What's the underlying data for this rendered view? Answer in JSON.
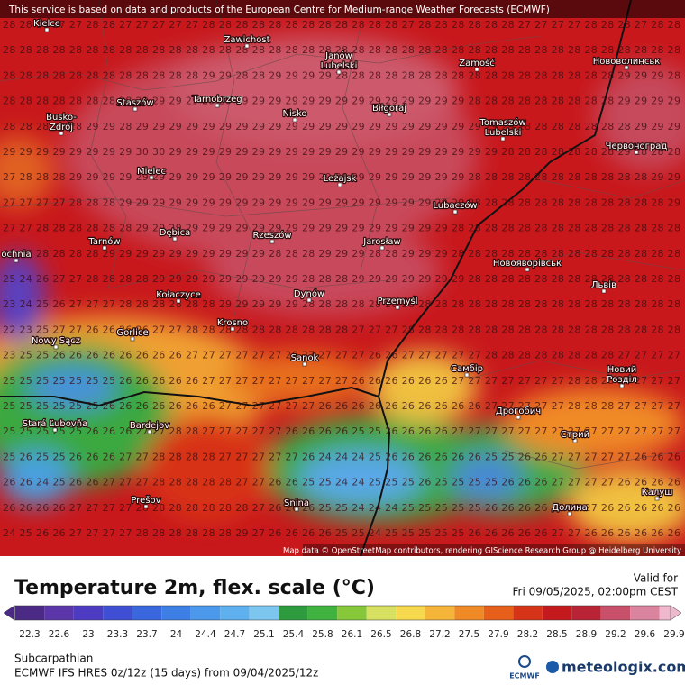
{
  "header": {
    "notice": "This service is based on data and products of the European Centre for Medium-range Weather Forecasts (ECMWF)"
  },
  "grid_rows": [
    "28 28 28 27 27 28 28 27 27 27 27 27 28 28 28 28 28 28 28 28 28 28 28 28 27 28 28 28 28 28 28 27 27 27 27 28 28 28 27 28 28",
    "28 28 28 28 28 28 28 28 28 28 28 28 28 28 28 28 28 28 28 28 28 28 28 28 28 28 28 28 28 28 28 28 28 28 28 28 28 28 28 28 28",
    "28 28 28 28 28 28 28 28 28 28 28 28 29 29 28 28 29 29 29 29 28 28 28 28 28 28 28 28 28 28 28 28 28 28 28 28 28 29 29 29 28",
    "28 28 28 28 28 28 28 28 29 29 29 29 29 29 29 29 29 29 29 29 29 29 29 29 29 29 29 29 28 28 28 28 28 28 28 28 28 29 29 29 29",
    "28 28 28 28 28 29 29 28 29 29 29 29 29 29 29 29 29 29 29 29 29 29 29 29 29 29 29 29 29 29 29 28 28 28 28 28 28 28 29 29 29",
    "29 29 29 29 29 29 29 29 30 30 29 29 29 29 29 29 29 29 29 29 29 29 29 29 29 29 29 29 29 29 28 28 28 28 28 28 28 29 28 28 28",
    "27 28 28 28 29 29 29 29 29 29 29 29 29 29 29 29 29 29 29 29 29 29 29 29 29 29 29 29 28 28 28 28 28 28 28 28 28 28 28 29 29",
    "27 27 27 27 28 28 28 29 29 29 29 29 29 29 29 29 29 29 29 29 29 29 29 29 29 29 29 29 28 28 28 28 28 28 28 28 28 28 28 28 29",
    "27 27 28 28 28 28 28 28 29 29 29 29 29 29 29 29 29 29 29 29 29 29 29 29 29 29 29 28 28 28 28 28 28 28 28 28 28 28 28 28 28",
    "25 27 28 28 28 28 29 29 29 29 29 29 29 29 29 29 28 28 28 29 29 29 28 28 29 29 29 28 28 28 28 28 28 28 28 28 28 28 28 28 28",
    "25 24 26 27 27 28 28 28 28 29 29 29 29 29 29 29 29 29 28 28 28 29 29 29 29 29 29 29 28 28 28 28 28 28 28 28 28 28 28 28 28",
    "23 24 25 26 27 27 27 28 28 28 28 28 28 29 29 29 29 29 28 28 28 28 28 28 28 28 28 28 28 28 28 28 28 28 28 28 28 28 28 28 28",
    "22 23 25 27 27 26 26 26 26 27 27 28 28 28 28 28 28 28 28 28 28 27 27 27 28 28 28 28 28 28 28 28 28 28 28 28 28 28 28 28 28",
    "23 25 25 26 26 26 26 26 26 26 26 27 27 27 27 27 27 28 27 27 27 27 26 26 27 27 27 27 27 28 28 28 28 28 28 28 28 27 27 27 27",
    "25 25 25 25 25 25 25 26 26 26 26 26 27 27 27 27 27 27 27 27 27 26 26 26 26 26 26 27 27 27 27 27 27 27 28 28 28 27 27 27 27",
    "25 25 25 25 25 25 26 26 26 26 26 26 26 27 27 27 27 27 27 26 26 26 26 26 26 26 26 26 26 27 27 27 27 27 28 28 28 27 27 27 27",
    "25 25 25 25 25 26 26 26 27 27 28 28 27 27 27 27 27 26 26 26 26 25 25 26 26 26 26 27 27 27 27 27 27 27 27 27 27 27 27 27 27",
    "25 26 25 25 26 26 26 27 27 28 28 28 28 27 27 27 27 27 26 24 24 24 25 26 26 26 26 26 26 25 25 26 26 27 27 27 27 27 26 26 26",
    "26 26 24 25 26 26 27 27 27 28 28 28 28 28 27 27 26 26 25 25 24 24 25 25 25 26 25 25 25 25 26 26 26 27 27 27 27 26 26 26 26",
    "26 26 26 26 27 27 27 27 28 28 28 28 28 28 28 27 26 26 26 25 25 24 24 24 25 25 25 25 25 26 26 26 26 27 27 27 26 26 26 26 26",
    "24 25 26 26 27 27 27 27 28 28 28 28 28 28 29 27 26 26 26 26 25 25 24 25 25 25 25 25 26 26 26 26 26 27 27 26 26 26 26 26 26"
  ],
  "cities": [
    [
      "Kielce"
    ],
    [
      "Zawichost"
    ],
    [
      "Janów",
      "Lubelski"
    ],
    [
      "Zamość"
    ],
    [
      "Нововолинськ"
    ],
    [
      "Staszów"
    ],
    [
      "Tarnobrzeg"
    ],
    [
      "Nisko"
    ],
    [
      "Biłgoraj"
    ],
    [
      "Busko-",
      "Zdrój"
    ],
    [
      "Tomaszów",
      "Lubelski"
    ],
    [
      "Червоноград"
    ],
    [
      "Mielec"
    ],
    [
      "Leżajsk"
    ],
    [
      "Lubaczów"
    ],
    [
      "Tarnów"
    ],
    [
      "Dębica"
    ],
    [
      "Rzeszów"
    ],
    [
      "Jarosław"
    ],
    [
      "Новояворівськ"
    ],
    [
      "Львів"
    ],
    [
      "ochnia"
    ],
    [
      "Kołaczyce"
    ],
    [
      "Dynów"
    ],
    [
      "Przemyśl"
    ],
    [
      "Krosno"
    ],
    [
      "Gorlice"
    ],
    [
      "Nowy Sącz"
    ],
    [
      "Sanok"
    ],
    [
      "Самбір"
    ],
    [
      "Новий",
      "Розділ"
    ],
    [
      "Stará Ľubovňa"
    ],
    [
      "Bardejov"
    ],
    [
      "Дрогобич"
    ],
    [
      "Стрий"
    ],
    [
      "Prešov"
    ],
    [
      "Snina"
    ],
    [
      "Калуш"
    ],
    [
      "Долина"
    ]
  ],
  "attribution": "Map data © OpenStreetMap contributors, rendering GIScience Research Group @ Heidelberg University",
  "legend": {
    "title": "Temperature 2m, flex. scale (°C)",
    "valid_label": "Valid for",
    "valid_time": "Fri 09/05/2025, 02:00pm CEST",
    "ticks": [
      22.3,
      22.6,
      23,
      23.3,
      23.7,
      24,
      24.4,
      24.7,
      25.1,
      25.4,
      25.8,
      26.1,
      26.5,
      26.8,
      27.2,
      27.5,
      27.9,
      28.2,
      28.5,
      28.9,
      29.2,
      29.6,
      29.9
    ],
    "colors": [
      "#4b2a86",
      "#5a36a8",
      "#4d3cc2",
      "#3f4fd4",
      "#3a66de",
      "#3d7fe4",
      "#4c98ea",
      "#5fb0ee",
      "#7cc6f0",
      "#2e9c3e",
      "#3fb23f",
      "#86c83a",
      "#d7e060",
      "#f6d84e",
      "#f5b43a",
      "#f08a26",
      "#e6601c",
      "#d63418",
      "#c41a1e",
      "#b82436",
      "#c8506a",
      "#da84a0",
      "#f0b8cc"
    ]
  },
  "footer": {
    "region": "Subcarpathian",
    "model": "ECMWF IFS HRES 0z/12z (15 days) from 09/04/2025/12z",
    "ecmwf_logo": "ECMWF",
    "brand": "meteologix.com"
  }
}
